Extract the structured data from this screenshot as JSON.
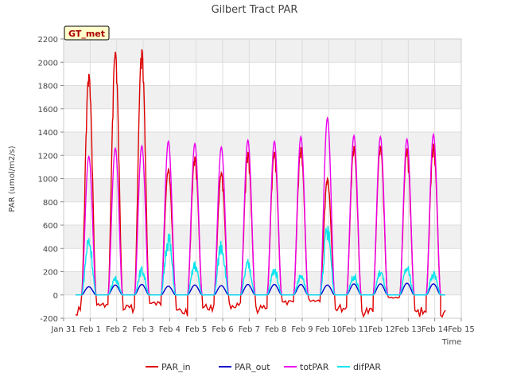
{
  "chart_data": {
    "type": "line",
    "title": "Gilbert Tract PAR",
    "xlabel": "Time",
    "ylabel": "PAR (umol/m2/s)",
    "badge": "GT_met",
    "xlim": [
      0,
      15
    ],
    "ylim": [
      -200,
      2200
    ],
    "grid": true,
    "legend_position": "bottom",
    "x_ticks": [
      {
        "value": 0,
        "label": "Jan 31"
      },
      {
        "value": 1,
        "label": "Feb 1"
      },
      {
        "value": 2,
        "label": "Feb 2"
      },
      {
        "value": 3,
        "label": "Feb 3"
      },
      {
        "value": 4,
        "label": "Feb 4"
      },
      {
        "value": 5,
        "label": "Feb 5"
      },
      {
        "value": 6,
        "label": "Feb 6"
      },
      {
        "value": 7,
        "label": "Feb 7"
      },
      {
        "value": 8,
        "label": "Feb 8"
      },
      {
        "value": 9,
        "label": "Feb 9"
      },
      {
        "value": 10,
        "label": "Feb 10"
      },
      {
        "value": 11,
        "label": "Feb 11"
      },
      {
        "value": 12,
        "label": "Feb 12"
      },
      {
        "value": 13,
        "label": "Feb 13"
      },
      {
        "value": 14,
        "label": "Feb 14"
      },
      {
        "value": 15,
        "label": "Feb 15"
      }
    ],
    "y_ticks": [
      -200,
      0,
      200,
      400,
      600,
      800,
      1000,
      1200,
      1400,
      1600,
      1800,
      2000,
      2200
    ],
    "days": [
      1,
      2,
      3,
      4,
      5,
      6,
      7,
      8,
      9,
      10,
      11,
      12,
      13,
      14
    ],
    "series": [
      {
        "name": "PAR_in",
        "color": "#dd0000",
        "peaks": [
          1900,
          2090,
          2110,
          1080,
          1190,
          1050,
          1230,
          1230,
          1270,
          1000,
          1280,
          1280,
          1260,
          1300
        ],
        "night": [
          -180,
          -120,
          -150,
          -100,
          -190,
          -140,
          -120,
          -160,
          -90,
          -60,
          -150,
          -190,
          -30,
          -190
        ]
      },
      {
        "name": "PAR_out",
        "color": "#0000cc",
        "peaks": [
          70,
          85,
          90,
          75,
          85,
          80,
          90,
          90,
          90,
          85,
          95,
          95,
          100,
          95
        ],
        "night": [
          0,
          0,
          0,
          0,
          0,
          0,
          0,
          0,
          0,
          0,
          0,
          0,
          0,
          0
        ]
      },
      {
        "name": "totPAR",
        "color": "#ee00ee",
        "peaks": [
          1190,
          1260,
          1280,
          1320,
          1300,
          1270,
          1330,
          1320,
          1360,
          1520,
          1370,
          1360,
          1340,
          1380
        ],
        "night": [
          0,
          0,
          0,
          0,
          0,
          0,
          0,
          0,
          0,
          0,
          0,
          0,
          0,
          0
        ]
      },
      {
        "name": "difPAR",
        "color": "#00e5ee",
        "peaks": [
          460,
          140,
          210,
          480,
          250,
          430,
          260,
          210,
          160,
          540,
          160,
          190,
          225,
          175
        ],
        "night": [
          0,
          0,
          0,
          0,
          0,
          0,
          0,
          0,
          0,
          0,
          0,
          0,
          0,
          0
        ]
      }
    ]
  }
}
